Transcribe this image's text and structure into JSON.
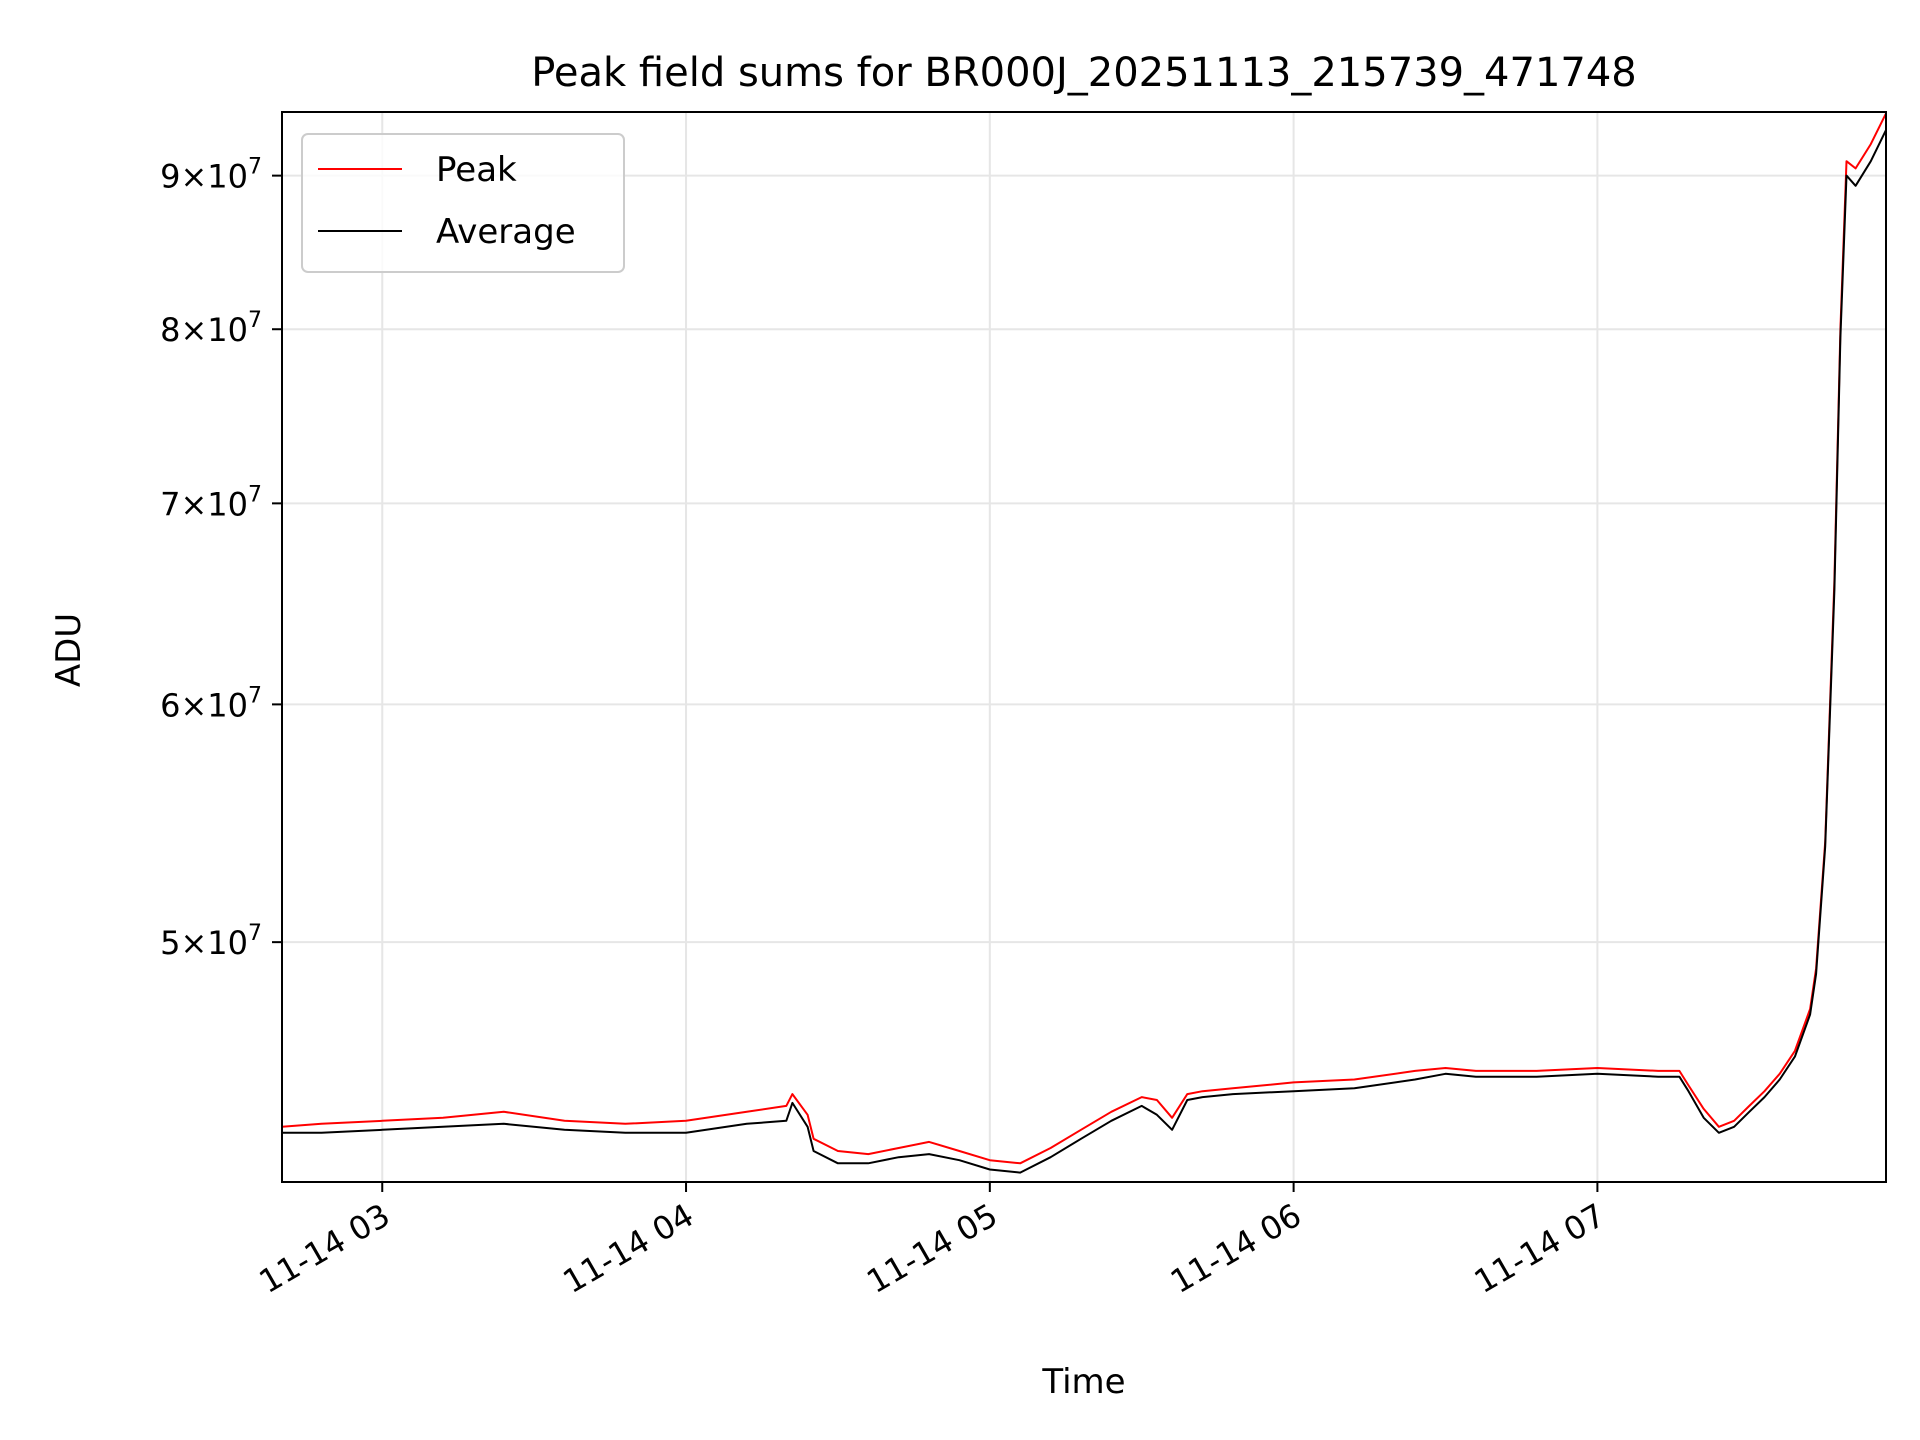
{
  "chart_data": {
    "type": "line",
    "title": "Peak field sums for BR000J_20251113_215739_471748",
    "xlabel": "Time",
    "ylabel": "ADU",
    "x_unit": "hours of 2025-11-14",
    "xlim": [
      2.67,
      7.95
    ],
    "ylim": [
      41600000,
      94500000
    ],
    "y_scale": "log",
    "grid": true,
    "legend_position": "top-left",
    "x_ticks": [
      {
        "value": 3,
        "label": "11-14 03"
      },
      {
        "value": 4,
        "label": "11-14 04"
      },
      {
        "value": 5,
        "label": "11-14 05"
      },
      {
        "value": 6,
        "label": "11-14 06"
      },
      {
        "value": 7,
        "label": "11-14 07"
      }
    ],
    "y_ticks": [
      {
        "value": 50000000,
        "mantissa": "5",
        "base": "10",
        "exponent": "7"
      },
      {
        "value": 60000000,
        "mantissa": "6",
        "base": "10",
        "exponent": "7"
      },
      {
        "value": 70000000,
        "mantissa": "7",
        "base": "10",
        "exponent": "7"
      },
      {
        "value": 80000000,
        "mantissa": "8",
        "base": "10",
        "exponent": "7"
      },
      {
        "value": 90000000,
        "mantissa": "9",
        "base": "10",
        "exponent": "7"
      }
    ],
    "series": [
      {
        "name": "Peak",
        "color": "#ff0000",
        "x": [
          2.67,
          2.8,
          3.0,
          3.2,
          3.4,
          3.6,
          3.8,
          4.0,
          4.2,
          4.33,
          4.35,
          4.4,
          4.42,
          4.5,
          4.6,
          4.7,
          4.8,
          4.9,
          5.0,
          5.1,
          5.2,
          5.3,
          5.4,
          5.5,
          5.55,
          5.6,
          5.65,
          5.7,
          5.8,
          6.0,
          6.2,
          6.4,
          6.5,
          6.6,
          6.8,
          7.0,
          7.2,
          7.27,
          7.3,
          7.35,
          7.4,
          7.45,
          7.5,
          7.55,
          7.6,
          7.65,
          7.7,
          7.72,
          7.75,
          7.78,
          7.8,
          7.82,
          7.85,
          7.9,
          7.95
        ],
        "y": [
          43400000,
          43500000,
          43600000,
          43700000,
          43900000,
          43600000,
          43500000,
          43600000,
          43900000,
          44100000,
          44500000,
          43800000,
          43000000,
          42600000,
          42500000,
          42700000,
          42900000,
          42600000,
          42300000,
          42200000,
          42700000,
          43300000,
          43900000,
          44400000,
          44300000,
          43700000,
          44500000,
          44600000,
          44700000,
          44900000,
          45000000,
          45300000,
          45400000,
          45300000,
          45300000,
          45400000,
          45300000,
          45300000,
          44800000,
          44000000,
          43400000,
          43600000,
          44100000,
          44600000,
          45200000,
          46000000,
          47500000,
          49000000,
          54000000,
          66000000,
          80000000,
          91000000,
          90500000,
          92200000,
          94400000
        ]
      },
      {
        "name": "Average",
        "color": "#000000",
        "x": [
          2.67,
          2.8,
          3.0,
          3.2,
          3.4,
          3.6,
          3.8,
          4.0,
          4.2,
          4.33,
          4.35,
          4.4,
          4.42,
          4.5,
          4.6,
          4.7,
          4.8,
          4.9,
          5.0,
          5.1,
          5.2,
          5.3,
          5.4,
          5.5,
          5.55,
          5.6,
          5.65,
          5.7,
          5.8,
          6.0,
          6.2,
          6.4,
          6.5,
          6.6,
          6.8,
          7.0,
          7.2,
          7.27,
          7.3,
          7.35,
          7.4,
          7.45,
          7.5,
          7.55,
          7.6,
          7.65,
          7.7,
          7.72,
          7.75,
          7.78,
          7.8,
          7.82,
          7.85,
          7.9,
          7.95
        ],
        "y": [
          43200000,
          43200000,
          43300000,
          43400000,
          43500000,
          43300000,
          43200000,
          43200000,
          43500000,
          43600000,
          44200000,
          43400000,
          42600000,
          42200000,
          42200000,
          42400000,
          42500000,
          42300000,
          42000000,
          41900000,
          42400000,
          43000000,
          43600000,
          44100000,
          43800000,
          43300000,
          44300000,
          44400000,
          44500000,
          44600000,
          44700000,
          45000000,
          45200000,
          45100000,
          45100000,
          45200000,
          45100000,
          45100000,
          44600000,
          43700000,
          43200000,
          43400000,
          43900000,
          44400000,
          45000000,
          45800000,
          47300000,
          48800000,
          53800000,
          65500000,
          79500000,
          90000000,
          89300000,
          91000000,
          93200000
        ]
      }
    ]
  }
}
